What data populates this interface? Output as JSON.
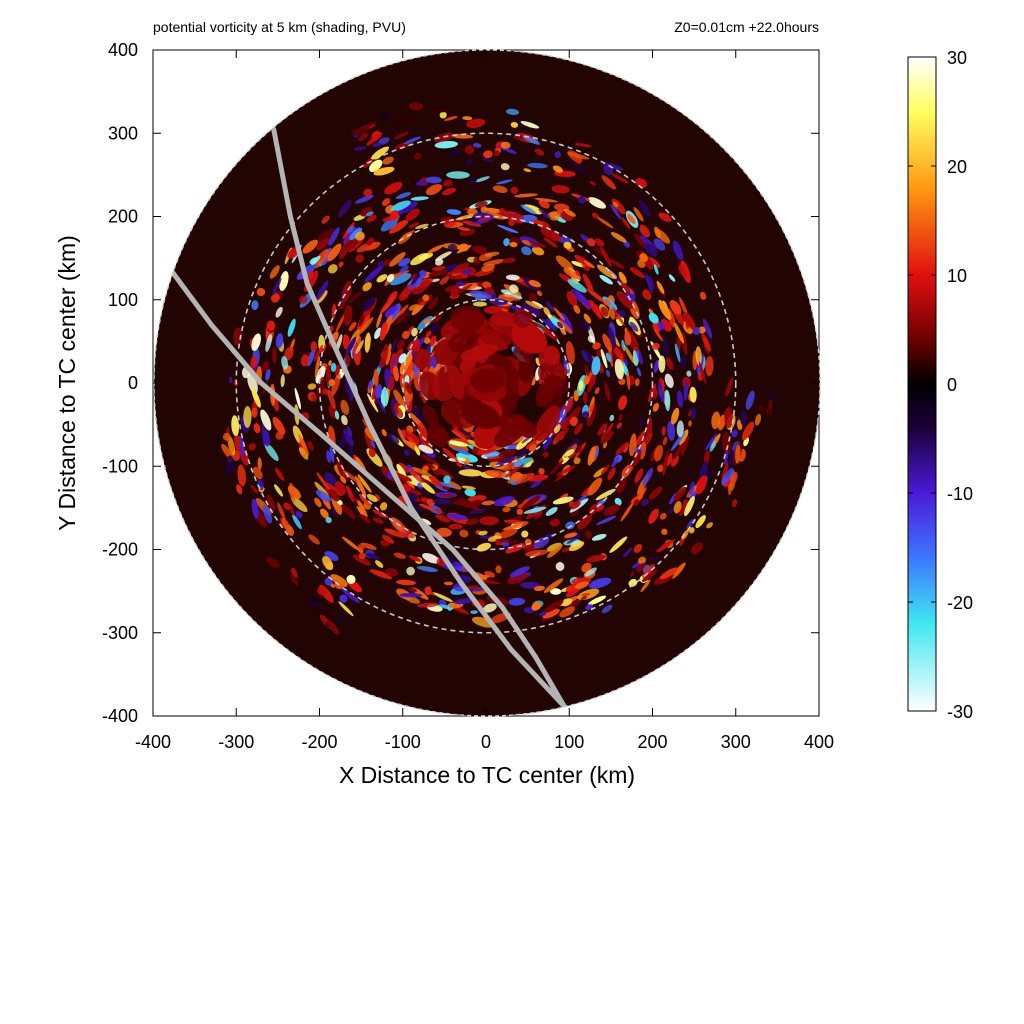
{
  "chart_data": {
    "type": "heatmap",
    "title": "potential vorticity at 5 km (shading, PVU)",
    "subtitle": "Z0=0.01cm  +22.0hours",
    "xlabel": "X Distance to TC center (km)",
    "ylabel": "Y Distance to TC center (km)",
    "xlim": [
      -400,
      400
    ],
    "ylim": [
      -400,
      400
    ],
    "x_ticks": [
      -400,
      -300,
      -200,
      -100,
      0,
      100,
      200,
      300,
      400
    ],
    "y_ticks": [
      400,
      300,
      200,
      100,
      0,
      -100,
      -200,
      -300,
      -400
    ],
    "x_tick_labels": [
      "-400",
      "-300",
      "-200",
      "-100",
      "0",
      "100",
      "200",
      "300",
      "400"
    ],
    "y_tick_labels": [
      "400",
      "300",
      "200",
      "100",
      "0",
      "-100",
      "-200",
      "-300",
      "-400"
    ],
    "domain_radius_km": 400,
    "range_rings_km": [
      100,
      200,
      300
    ],
    "colorbar": {
      "range": [
        -30,
        30
      ],
      "ticks": [
        30,
        20,
        10,
        0,
        -10,
        -20,
        -30
      ],
      "tick_labels": [
        "30",
        "20",
        "10",
        "0",
        "-10",
        "-20",
        "-30"
      ],
      "stops": [
        {
          "value": 30,
          "color": "#ffffff"
        },
        {
          "value": 25,
          "color": "#ffff60"
        },
        {
          "value": 18,
          "color": "#ff9a10"
        },
        {
          "value": 10,
          "color": "#e01010"
        },
        {
          "value": 4,
          "color": "#6a0000"
        },
        {
          "value": 0,
          "color": "#000000"
        },
        {
          "value": -4,
          "color": "#1a0038"
        },
        {
          "value": -10,
          "color": "#4a1ad8"
        },
        {
          "value": -16,
          "color": "#3c78ff"
        },
        {
          "value": -22,
          "color": "#40e8f0"
        },
        {
          "value": -30,
          "color": "#ffffff"
        }
      ]
    },
    "colors": {
      "ring": "#c8c8c8",
      "track": "#b4b4b4",
      "background_field": "#220403"
    },
    "tracks": [
      {
        "points": [
          [
            -255,
            305
          ],
          [
            -235,
            200
          ],
          [
            -215,
            120
          ],
          [
            -180,
            40
          ],
          [
            -140,
            -50
          ],
          [
            -90,
            -150
          ],
          [
            -30,
            -240
          ],
          [
            30,
            -320
          ],
          [
            100,
            -395
          ]
        ]
      },
      {
        "points": [
          [
            -378,
            135
          ],
          [
            -330,
            70
          ],
          [
            -270,
            0
          ],
          [
            -200,
            -60
          ],
          [
            -120,
            -130
          ],
          [
            -40,
            -200
          ],
          [
            20,
            -270
          ],
          [
            60,
            -330
          ],
          [
            95,
            -390
          ]
        ]
      }
    ]
  }
}
